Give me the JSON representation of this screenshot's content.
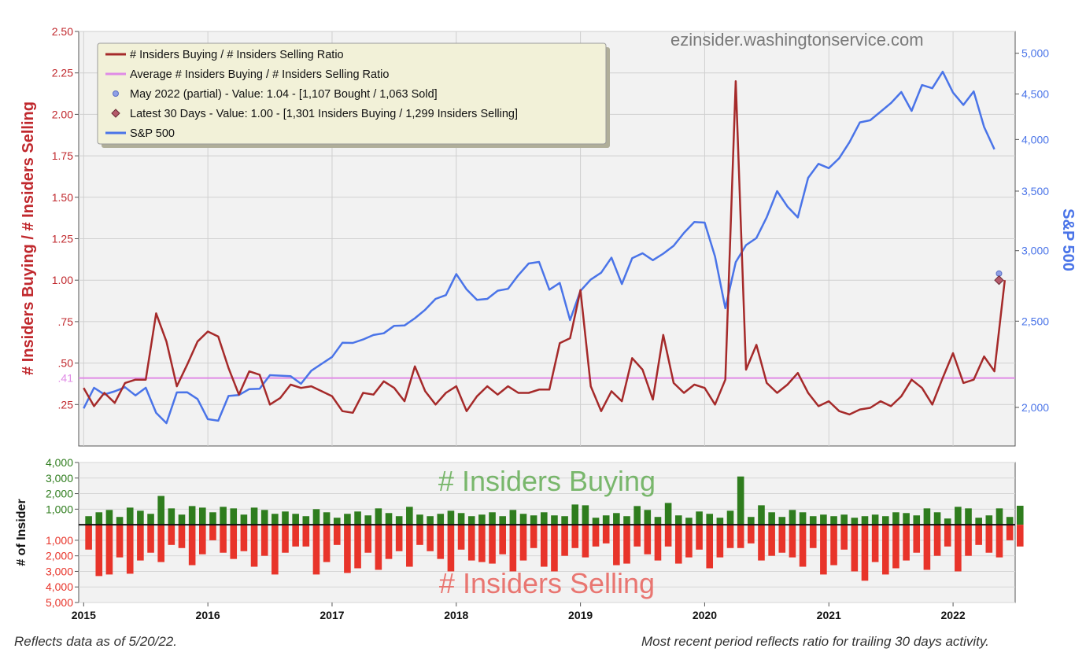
{
  "watermark": "ezinsider.washingtonservice.com",
  "footer": {
    "left": "Reflects data as of 5/20/22.",
    "right": "Most recent period reflects ratio for trailing 30 days activity."
  },
  "colors": {
    "ratio": "#a52a2a",
    "average": "#e08be6",
    "sp500": "#4a74e8",
    "buying": "#2f7d1e",
    "selling": "#e8342a",
    "left_axis": "#c0282d",
    "right_axis": "#4a74e8",
    "plot_bg": "#f2f2f2",
    "legend_bg": "#f2f1d8"
  },
  "chart_data": [
    {
      "type": "line",
      "ylabel": "# Insiders Buying / # Insiders Selling",
      "y2label": "S&P 500",
      "ylim": [
        0,
        2.5
      ],
      "y2lim": [
        1810,
        5290
      ],
      "y2scale": "log",
      "xlim": [
        2014.96,
        2022.5
      ],
      "yticks": [
        {
          "v": 0.25,
          "label": ".25"
        },
        {
          "v": 0.5,
          "label": ".50"
        },
        {
          "v": 0.75,
          "label": ".75"
        },
        {
          "v": 1.0,
          "label": "1.00"
        },
        {
          "v": 1.25,
          "label": "1.25"
        },
        {
          "v": 1.5,
          "label": "1.50"
        },
        {
          "v": 1.75,
          "label": "1.75"
        },
        {
          "v": 2.0,
          "label": "2.00"
        },
        {
          "v": 2.25,
          "label": "2.25"
        },
        {
          "v": 2.5,
          "label": "2.50"
        }
      ],
      "y2ticks": [
        {
          "v": 2000,
          "label": "2,000"
        },
        {
          "v": 2500,
          "label": "2,500"
        },
        {
          "v": 3000,
          "label": "3,000"
        },
        {
          "v": 3500,
          "label": "3,500"
        },
        {
          "v": 4000,
          "label": "4,000"
        },
        {
          "v": 4500,
          "label": "4,500"
        },
        {
          "v": 5000,
          "label": "5,000"
        }
      ],
      "average_value": 0.41,
      "average_label": ".41",
      "legend": [
        {
          "label": "# Insiders Buying / # Insiders Selling Ratio",
          "kind": "line",
          "color": "#a52a2a"
        },
        {
          "label": "Average # Insiders Buying / # Insiders Selling Ratio",
          "kind": "line",
          "color": "#e08be6"
        },
        {
          "label": "May 2022 (partial) - Value: 1.04 - [1,107 Bought / 1,063 Sold]",
          "kind": "circle",
          "color": "#8fa0e6"
        },
        {
          "label": "Latest 30 Days - Value: 1.00 - [1,301 Insiders Buying / 1,299 Insiders Selling]",
          "kind": "diamond",
          "color": "#b45a6a"
        },
        {
          "label": "S&P 500",
          "kind": "line",
          "color": "#4a74e8"
        }
      ],
      "x_start": 2015.0,
      "x_step": 0.08333,
      "ratio": [
        0.35,
        0.24,
        0.32,
        0.26,
        0.38,
        0.4,
        0.4,
        0.8,
        0.63,
        0.36,
        0.49,
        0.63,
        0.69,
        0.66,
        0.47,
        0.31,
        0.45,
        0.43,
        0.25,
        0.29,
        0.37,
        0.35,
        0.36,
        0.33,
        0.3,
        0.21,
        0.2,
        0.32,
        0.31,
        0.39,
        0.35,
        0.27,
        0.48,
        0.33,
        0.25,
        0.32,
        0.36,
        0.21,
        0.3,
        0.36,
        0.31,
        0.36,
        0.32,
        0.32,
        0.34,
        0.34,
        0.62,
        0.65,
        0.94,
        0.36,
        0.21,
        0.33,
        0.27,
        0.53,
        0.46,
        0.28,
        0.67,
        0.38,
        0.32,
        0.37,
        0.35,
        0.25,
        0.4,
        2.2,
        0.46,
        0.61,
        0.38,
        0.32,
        0.37,
        0.44,
        0.32,
        0.24,
        0.27,
        0.21,
        0.19,
        0.22,
        0.23,
        0.27,
        0.24,
        0.3,
        0.4,
        0.35,
        0.25,
        0.41,
        0.56,
        0.38,
        0.4,
        0.54,
        0.45,
        1.0
      ],
      "may2022_point": {
        "x": 2022.37,
        "y": 1.04
      },
      "latest_point": {
        "x": 2022.37,
        "y": 1.0
      },
      "sp500": [
        1995,
        2104,
        2068,
        2085,
        2107,
        2063,
        2104,
        1972,
        1920,
        2079,
        2080,
        2044,
        1940,
        1932,
        2060,
        2065,
        2097,
        2099,
        2174,
        2171,
        2168,
        2126,
        2199,
        2239,
        2279,
        2364,
        2363,
        2384,
        2412,
        2423,
        2470,
        2472,
        2519,
        2575,
        2648,
        2674,
        2824,
        2714,
        2641,
        2648,
        2705,
        2718,
        2816,
        2902,
        2914,
        2712,
        2760,
        2507,
        2704,
        2784,
        2834,
        2946,
        2752,
        2942,
        2980,
        2927,
        2977,
        3038,
        3141,
        3231,
        3226,
        2955,
        2585,
        2912,
        3044,
        3100,
        3271,
        3500,
        3363,
        3270,
        3622,
        3756,
        3714,
        3811,
        3973,
        4181,
        4204,
        4298,
        4395,
        4523,
        4307,
        4605,
        4567,
        4767,
        4516,
        4374,
        4530,
        4132,
        3900
      ],
      "x_labels": [
        "2015",
        "2016",
        "2017",
        "2018",
        "2019",
        "2020",
        "2021",
        "2022"
      ]
    },
    {
      "type": "bar",
      "ylabel": "# of Insider",
      "ylim": [
        -5000,
        4000
      ],
      "yticks": [
        {
          "v": 4000,
          "label": "4,000"
        },
        {
          "v": 3000,
          "label": "3,000"
        },
        {
          "v": 2000,
          "label": "2,000"
        },
        {
          "v": 1000,
          "label": "1,000"
        },
        {
          "v": -1000,
          "label": "1,000"
        },
        {
          "v": -2000,
          "label": "2,000"
        },
        {
          "v": -3000,
          "label": "3,000"
        },
        {
          "v": -4000,
          "label": "4,000"
        },
        {
          "v": -5000,
          "label": "5,000"
        }
      ],
      "buying_label": "# Insiders Buying",
      "selling_label": "# Insiders Selling",
      "x_start": 2015.04,
      "x_step": 0.08333,
      "buying": [
        550,
        800,
        950,
        500,
        1100,
        900,
        700,
        1850,
        1050,
        650,
        1200,
        1100,
        800,
        1150,
        1050,
        650,
        1100,
        950,
        700,
        850,
        700,
        550,
        1000,
        800,
        450,
        700,
        850,
        600,
        1050,
        750,
        550,
        1150,
        650,
        550,
        700,
        900,
        750,
        550,
        650,
        800,
        550,
        950,
        700,
        600,
        800,
        600,
        550,
        1300,
        1250,
        450,
        600,
        750,
        550,
        1200,
        950,
        500,
        1400,
        600,
        450,
        850,
        700,
        450,
        900,
        3100,
        500,
        1250,
        800,
        500,
        950,
        800,
        550,
        650,
        550,
        650,
        450,
        550,
        650,
        550,
        800,
        750,
        600,
        1050,
        800,
        400,
        1150,
        1050,
        450,
        600,
        1050,
        500,
        1220
      ],
      "selling": [
        1600,
        3300,
        3200,
        2100,
        3150,
        2300,
        1800,
        2400,
        1300,
        1500,
        2600,
        1900,
        1000,
        1800,
        2200,
        1700,
        2700,
        2000,
        3200,
        1800,
        1400,
        1400,
        3200,
        2400,
        1300,
        3100,
        2800,
        1800,
        2900,
        2200,
        1700,
        2700,
        1300,
        1700,
        2200,
        3000,
        1600,
        2300,
        2400,
        2500,
        1900,
        3000,
        2300,
        1500,
        2700,
        3000,
        2000,
        1500,
        2100,
        1400,
        1200,
        2600,
        2500,
        1400,
        1900,
        2300,
        1400,
        2500,
        2100,
        1600,
        2800,
        2100,
        1500,
        1500,
        1200,
        2300,
        2000,
        1800,
        2100,
        2700,
        1500,
        3200,
        2600,
        1600,
        3000,
        3600,
        2400,
        3200,
        2800,
        2300,
        1800,
        2900,
        2000,
        1400,
        3000,
        2000,
        1300,
        1800,
        2100,
        1000,
        1400
      ],
      "x_labels": [
        "2015",
        "2016",
        "2017",
        "2018",
        "2019",
        "2020",
        "2021",
        "2022"
      ]
    }
  ]
}
